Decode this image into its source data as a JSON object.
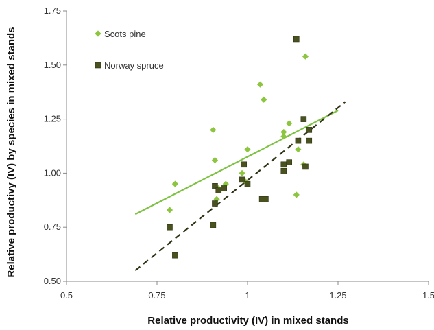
{
  "chart_data": {
    "type": "scatter",
    "xlabel": "Relative productivity (IV) in mixed stands",
    "ylabel": "Relative productivy (IV) by species in mixed stands",
    "xlim": [
      0.5,
      1.5
    ],
    "ylim": [
      0.5,
      1.75
    ],
    "xticks": [
      0.5,
      0.75,
      1,
      1.25,
      1.5
    ],
    "xtick_labels": [
      "0.5",
      "0.75",
      "1",
      "1.25",
      "1.5"
    ],
    "yticks": [
      0.5,
      0.75,
      1.0,
      1.25,
      1.5,
      1.75
    ],
    "ytick_labels": [
      "0.50",
      "0.75",
      "1.00",
      "1.25",
      "1.50",
      "1.75"
    ],
    "grid": false,
    "legend_position": "top-left",
    "series": [
      {
        "name": "Scots pine",
        "marker": "diamond",
        "color": "#8cc63f",
        "trendline": {
          "style": "solid",
          "color": "#7dc242",
          "x": [
            0.69,
            1.25
          ],
          "y": [
            0.81,
            1.29
          ]
        },
        "points": [
          [
            0.785,
            0.83
          ],
          [
            0.8,
            0.95
          ],
          [
            0.905,
            1.2
          ],
          [
            0.91,
            1.06
          ],
          [
            0.915,
            0.88
          ],
          [
            0.92,
            0.93
          ],
          [
            0.94,
            0.95
          ],
          [
            0.985,
            1.0
          ],
          [
            0.995,
            0.96
          ],
          [
            1.0,
            1.11
          ],
          [
            1.035,
            1.41
          ],
          [
            1.045,
            1.34
          ],
          [
            1.1,
            1.19
          ],
          [
            1.1,
            1.17
          ],
          [
            1.115,
            1.23
          ],
          [
            1.135,
            0.9
          ],
          [
            1.14,
            1.11
          ],
          [
            1.155,
            1.04
          ],
          [
            1.16,
            1.54
          ]
        ]
      },
      {
        "name": "Norway spruce",
        "marker": "square",
        "color": "#4a5320",
        "trendline": {
          "style": "dashed",
          "color": "#2f3314",
          "x": [
            0.69,
            1.27
          ],
          "y": [
            0.55,
            1.33
          ]
        },
        "points": [
          [
            0.785,
            0.75
          ],
          [
            0.8,
            0.62
          ],
          [
            0.905,
            0.76
          ],
          [
            0.91,
            0.94
          ],
          [
            0.91,
            0.86
          ],
          [
            0.92,
            0.92
          ],
          [
            0.935,
            0.93
          ],
          [
            0.985,
            0.97
          ],
          [
            0.99,
            1.04
          ],
          [
            1.0,
            0.95
          ],
          [
            1.04,
            0.88
          ],
          [
            1.05,
            0.88
          ],
          [
            1.1,
            1.04
          ],
          [
            1.1,
            1.01
          ],
          [
            1.115,
            1.05
          ],
          [
            1.135,
            1.62
          ],
          [
            1.14,
            1.15
          ],
          [
            1.155,
            1.25
          ],
          [
            1.16,
            1.03
          ],
          [
            1.17,
            1.15
          ],
          [
            1.17,
            1.2
          ]
        ]
      }
    ]
  }
}
